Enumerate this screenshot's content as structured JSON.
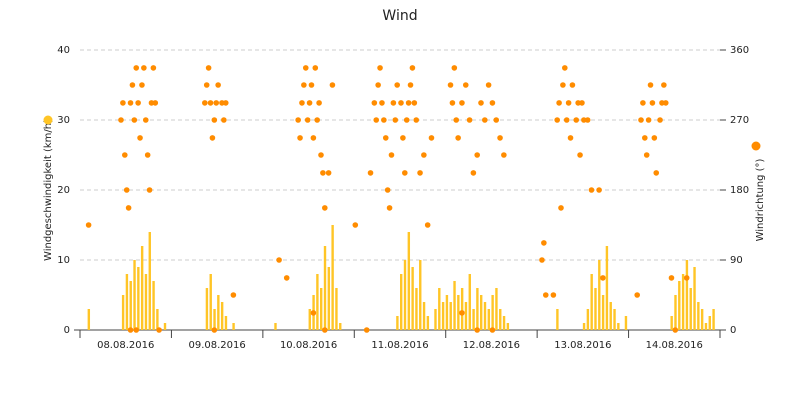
{
  "chart_data": {
    "type": "bar-scatter",
    "title": "Wind",
    "y_label": "Windgeschwindigkeit (km/h)",
    "y2_label": "Windrichtung (°)",
    "xlim": [
      0,
      168
    ],
    "xticks": [
      {
        "value": 12,
        "label": "08.08.2016"
      },
      {
        "value": 36,
        "label": "09.08.2016"
      },
      {
        "value": 60,
        "label": "10.08.2016"
      },
      {
        "value": 84,
        "label": "11.08.2016"
      },
      {
        "value": 108,
        "label": "12.08.2016"
      },
      {
        "value": 132,
        "label": "13.08.2016"
      },
      {
        "value": 156,
        "label": "14.08.2016"
      }
    ],
    "minor_xticks": [
      0,
      24,
      48,
      72,
      96,
      120,
      144,
      168
    ],
    "ylim": [
      0,
      40
    ],
    "yticks": [
      0,
      10,
      20,
      30,
      40
    ],
    "y2lim": [
      0,
      360
    ],
    "y2ticks": [
      0,
      90,
      180,
      270,
      360
    ],
    "grid": true,
    "series": [
      {
        "name": "Windgeschwindigkeit",
        "type": "bar",
        "color": "#ffc526",
        "x": [
          0,
          1,
          2,
          3,
          4,
          5,
          6,
          7,
          8,
          9,
          10,
          11,
          12,
          13,
          14,
          15,
          16,
          17,
          18,
          19,
          20,
          21,
          22,
          23,
          24,
          25,
          26,
          27,
          28,
          29,
          30,
          31,
          32,
          33,
          34,
          35,
          36,
          37,
          38,
          39,
          40,
          41,
          42,
          43,
          44,
          45,
          46,
          47,
          48,
          49,
          50,
          51,
          52,
          53,
          54,
          55,
          56,
          57,
          58,
          59,
          60,
          61,
          62,
          63,
          64,
          65,
          66,
          67,
          68,
          69,
          70,
          71,
          72,
          73,
          74,
          75,
          76,
          77,
          78,
          79,
          80,
          81,
          82,
          83,
          84,
          85,
          86,
          87,
          88,
          89,
          90,
          91,
          92,
          93,
          94,
          95,
          96,
          97,
          98,
          99,
          100,
          101,
          102,
          103,
          104,
          105,
          106,
          107,
          108,
          109,
          110,
          111,
          112,
          113,
          114,
          115,
          116,
          117,
          118,
          119,
          120,
          121,
          122,
          123,
          124,
          125,
          126,
          127,
          128,
          129,
          130,
          131,
          132,
          133,
          134,
          135,
          136,
          137,
          138,
          139,
          140,
          141,
          142,
          143,
          144,
          145,
          146,
          147,
          148,
          149,
          150,
          151,
          152,
          153,
          154,
          155,
          156,
          157,
          158,
          159,
          160,
          161,
          162,
          163,
          164,
          165,
          166,
          167
        ],
        "values": [
          0,
          0,
          3,
          0,
          0,
          0,
          0,
          0,
          0,
          0,
          0,
          5,
          8,
          7,
          10,
          9,
          12,
          8,
          14,
          7,
          3,
          0,
          1,
          0,
          0,
          0,
          0,
          0,
          0,
          0,
          0,
          0,
          0,
          6,
          8,
          3,
          5,
          4,
          2,
          0,
          1,
          0,
          0,
          0,
          0,
          0,
          0,
          0,
          0,
          0,
          0,
          1,
          0,
          0,
          0,
          0,
          0,
          0,
          0,
          0,
          3,
          5,
          8,
          6,
          12,
          9,
          15,
          6,
          1,
          0,
          0,
          0,
          0,
          0,
          0,
          0,
          0,
          0,
          0,
          0,
          0,
          0,
          0,
          2,
          8,
          10,
          14,
          9,
          6,
          10,
          4,
          2,
          0,
          3,
          6,
          4,
          5,
          4,
          7,
          5,
          6,
          4,
          8,
          3,
          6,
          5,
          4,
          3,
          5,
          6,
          3,
          2,
          1,
          0,
          0,
          0,
          0,
          0,
          0,
          0,
          0,
          0,
          0,
          0,
          0,
          3,
          0,
          0,
          0,
          0,
          0,
          0,
          1,
          3,
          8,
          6,
          10,
          5,
          12,
          4,
          3,
          1,
          0,
          2,
          0,
          0,
          0,
          0,
          0,
          0,
          0,
          0,
          0,
          0,
          0,
          2,
          5,
          7,
          8,
          10,
          6,
          9,
          4,
          3,
          1,
          2,
          3,
          0
        ]
      },
      {
        "name": "Windrichtung",
        "type": "scatter",
        "axis": "y2",
        "color": "#ff8c00",
        "x": [
          2,
          10.5,
          11,
          11.5,
          12,
          12.5,
          13,
          13.5,
          14,
          14.5,
          15,
          15.5,
          16,
          16.5,
          17,
          17.5,
          18,
          18.5,
          19,
          19.5,
          13,
          14.5,
          20.5,
          32.5,
          33,
          33.5,
          34,
          34.5,
          35,
          35.5,
          36,
          37,
          37.5,
          38,
          40,
          35,
          52,
          54,
          57,
          57.5,
          58,
          58.5,
          59,
          59.5,
          60,
          60.5,
          61,
          61.5,
          62,
          62.5,
          63,
          63.5,
          64,
          65,
          66,
          61,
          64,
          72,
          75,
          76,
          77,
          77.5,
          78,
          78.5,
          79,
          79.5,
          80,
          80.5,
          81,
          81.5,
          82,
          82.5,
          83,
          84,
          84.5,
          85,
          85.5,
          86,
          86.5,
          87,
          87.5,
          88,
          89,
          90,
          91,
          92,
          97,
          97.5,
          98,
          98.5,
          99,
          100,
          101,
          102,
          103,
          104,
          105,
          106,
          107,
          108,
          109,
          110,
          111,
          100,
          104,
          108,
          121,
          121.5,
          122,
          124,
          125,
          125.5,
          126,
          126.5,
          127,
          127.5,
          128,
          128.5,
          129,
          130,
          130.5,
          131,
          131.5,
          132,
          133,
          134,
          136,
          137,
          146,
          147,
          147.5,
          148,
          148.5,
          149,
          149.5,
          150,
          150.5,
          151,
          152,
          152.5,
          153,
          153.5,
          155,
          156,
          159
        ],
        "values": [
          135,
          270,
          292,
          225,
          180,
          157,
          292,
          315,
          270,
          337,
          292,
          247,
          315,
          337,
          270,
          225,
          180,
          292,
          337,
          292,
          0,
          0,
          0,
          292,
          315,
          337,
          292,
          247,
          270,
          292,
          315,
          292,
          270,
          292,
          45,
          0,
          90,
          67,
          270,
          247,
          292,
          315,
          337,
          270,
          292,
          315,
          247,
          337,
          270,
          292,
          225,
          202,
          157,
          202,
          315,
          22,
          0,
          135,
          0,
          202,
          292,
          270,
          315,
          337,
          292,
          270,
          247,
          180,
          157,
          225,
          292,
          270,
          315,
          292,
          247,
          202,
          270,
          292,
          315,
          337,
          292,
          270,
          202,
          225,
          135,
          247,
          315,
          292,
          337,
          270,
          247,
          292,
          315,
          270,
          202,
          225,
          292,
          270,
          315,
          292,
          270,
          247,
          225,
          22,
          0,
          0,
          90,
          112,
          45,
          45,
          270,
          292,
          157,
          315,
          337,
          270,
          292,
          247,
          315,
          270,
          292,
          225,
          292,
          270,
          270,
          180,
          180,
          67,
          45,
          270,
          292,
          247,
          225,
          270,
          315,
          292,
          247,
          202,
          270,
          292,
          315,
          292,
          67,
          0,
          67
        ]
      }
    ]
  }
}
